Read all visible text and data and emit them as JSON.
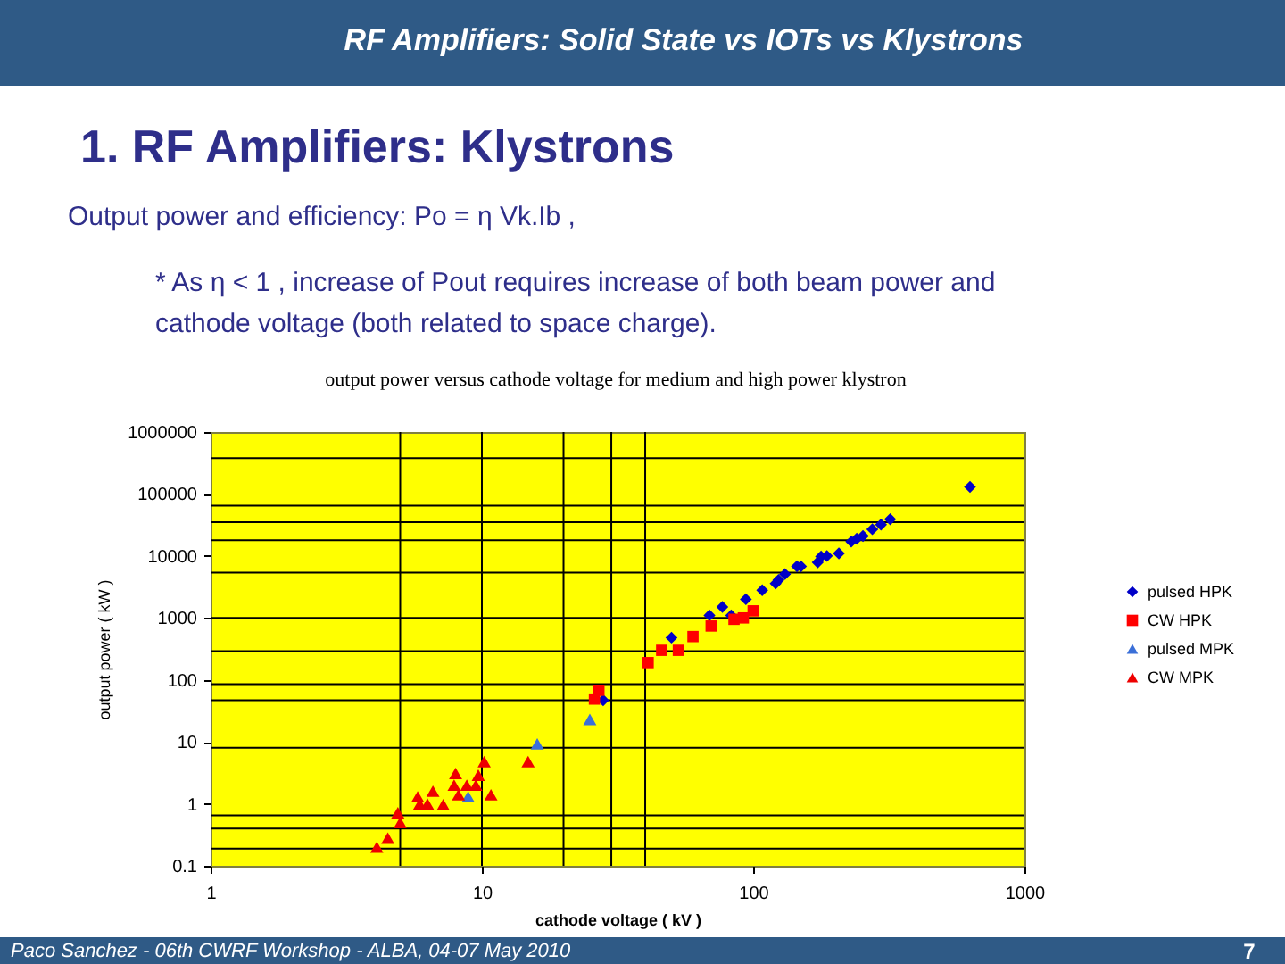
{
  "chart_data": {
    "type": "scatter",
    "title": "output power versus cathode voltage for medium and high power klystron",
    "xlabel": "cathode voltage ( kV )",
    "ylabel": "output power ( kW )",
    "log": "xy",
    "grid": false,
    "legend": "right",
    "xlim": [
      1,
      1000
    ],
    "xticks": [
      1,
      10,
      100,
      1000
    ],
    "ylim": [
      0.1,
      1000000
    ],
    "yticks": [
      0.1,
      1,
      10,
      100,
      1000,
      10000,
      100000,
      1000000
    ],
    "series": [
      {
        "name": "pulsed HPK",
        "color": "#0000c8",
        "marker": "diamond",
        "x": [
          28,
          50,
          69,
          77,
          83,
          94,
          108,
          121,
          124,
          131,
          145,
          150,
          173,
          178,
          187,
          207,
          230,
          241,
          254,
          275,
          296,
          320,
          630
        ],
        "values": [
          47,
          480,
          1100,
          1500,
          1100,
          2000,
          2800,
          3600,
          4100,
          5100,
          6800,
          6800,
          7900,
          9800,
          10000,
          11000,
          17000,
          19000,
          21000,
          27000,
          32000,
          39000,
          130000
        ]
      },
      {
        "name": "CW HPK",
        "color": "#ff0000",
        "marker": "square",
        "x": [
          27,
          26,
          41,
          46,
          53,
          60,
          70,
          85,
          92,
          100
        ],
        "values": [
          68,
          49,
          190,
          300,
          300,
          500,
          740,
          950,
          1000,
          1300
        ]
      },
      {
        "name": "pulsed MPK",
        "color": "#3a6fd8",
        "marker": "triangle",
        "x": [
          8.9,
          16,
          25
        ],
        "values": [
          1.3,
          9.3,
          23
        ]
      },
      {
        "name": "CW MPK",
        "color": "#ee0000",
        "marker": "triangle",
        "x": [
          4.1,
          4.5,
          4.9,
          5.0,
          5.8,
          5.9,
          6.3,
          6.6,
          7.2,
          7.9,
          8.0,
          8.2,
          8.8,
          9.5,
          9.7,
          10.2,
          10.8,
          14.8
        ],
        "values": [
          0.2,
          0.28,
          0.72,
          0.5,
          1.3,
          1.0,
          1.0,
          1.6,
          0.97,
          2.0,
          3.1,
          1.4,
          2.0,
          2.0,
          2.9,
          4.8,
          1.4,
          4.8
        ]
      }
    ],
    "ref_lines": [
      {
        "axis": "x",
        "value": 5,
        "color": "#000000"
      },
      {
        "axis": "x",
        "value": 10,
        "color": "#000000"
      },
      {
        "axis": "x",
        "value": 20,
        "color": "#000000"
      },
      {
        "axis": "x",
        "value": 30,
        "color": "#000000"
      },
      {
        "axis": "x",
        "value": 40,
        "color": "#000000"
      },
      {
        "axis": "y",
        "value": 380000,
        "color": "#000000"
      },
      {
        "axis": "y",
        "value": 65000,
        "color": "#000000"
      },
      {
        "axis": "y",
        "value": 35000,
        "color": "#000000"
      },
      {
        "axis": "y",
        "value": 18000,
        "color": "#000000"
      },
      {
        "axis": "y",
        "value": 5400,
        "color": "#000000"
      },
      {
        "axis": "y",
        "value": 1000,
        "color": "#000000"
      },
      {
        "axis": "y",
        "value": 290,
        "color": "#000000"
      },
      {
        "axis": "y",
        "value": 85,
        "color": "#000000"
      },
      {
        "axis": "y",
        "value": 47,
        "color": "#000000"
      },
      {
        "axis": "y",
        "value": 8,
        "color": "#000000"
      },
      {
        "axis": "y",
        "value": 0.65,
        "color": "#000000"
      },
      {
        "axis": "y",
        "value": 0.4,
        "color": "#000000"
      },
      {
        "axis": "y",
        "value": 0.19,
        "color": "#000000"
      }
    ],
    "annotations": [
      "RF Amplifiers: Solid State vs IOTs vs Klystrons",
      "1. RF Amplifiers: Klystrons",
      "Output power and efficiency: Po = η Vk.Ib ,",
      "* As η < 1 , increase of Pout requires increase of both beam power and cathode voltage (both related to space charge).",
      "Paco Sanchez - 06th CWRF Workshop - ALBA, 04-07 May 2010",
      "7"
    ]
  }
}
